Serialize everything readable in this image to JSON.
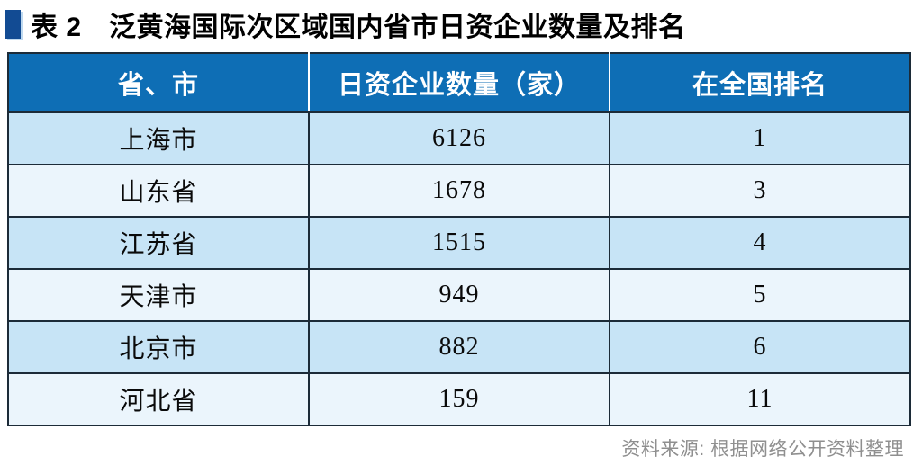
{
  "title": {
    "caption": "表 2　泛黄海国际次区域国内省市日资企业数量及排名"
  },
  "table": {
    "columns": [
      "省、市",
      "日资企业数量（家）",
      "在全国排名"
    ],
    "rows": [
      {
        "province": "上海市",
        "count": "6126",
        "rank": "1"
      },
      {
        "province": "山东省",
        "count": "1678",
        "rank": "3"
      },
      {
        "province": "江苏省",
        "count": "1515",
        "rank": "4"
      },
      {
        "province": "天津市",
        "count": "949",
        "rank": "5"
      },
      {
        "province": "北京市",
        "count": "882",
        "rank": "6"
      },
      {
        "province": "河北省",
        "count": "159",
        "rank": "11"
      }
    ]
  },
  "source_note": "资料来源: 根据网络公开资料整理",
  "colors": {
    "header-bg": "#0E6EB5",
    "row-odd": "#C7E4F6",
    "row-even": "#EBF5FC",
    "table-border": "#1C2B38",
    "header-divider": "#FFFFFF",
    "caption-marker": "#124B93",
    "source-text": "#8F8F8F",
    "title-text": "#000000"
  },
  "chart_data": {
    "type": "table",
    "title": "表 2　泛黄海国际次区域国内省市日资企业数量及排名",
    "columns": [
      "省、市",
      "日资企业数量（家）",
      "在全国排名"
    ],
    "rows": [
      [
        "上海市",
        6126,
        1
      ],
      [
        "山东省",
        1678,
        3
      ],
      [
        "江苏省",
        1515,
        4
      ],
      [
        "天津市",
        949,
        5
      ],
      [
        "北京市",
        882,
        6
      ],
      [
        "河北省",
        159,
        11
      ]
    ],
    "source": "资料来源: 根据网络公开资料整理"
  }
}
